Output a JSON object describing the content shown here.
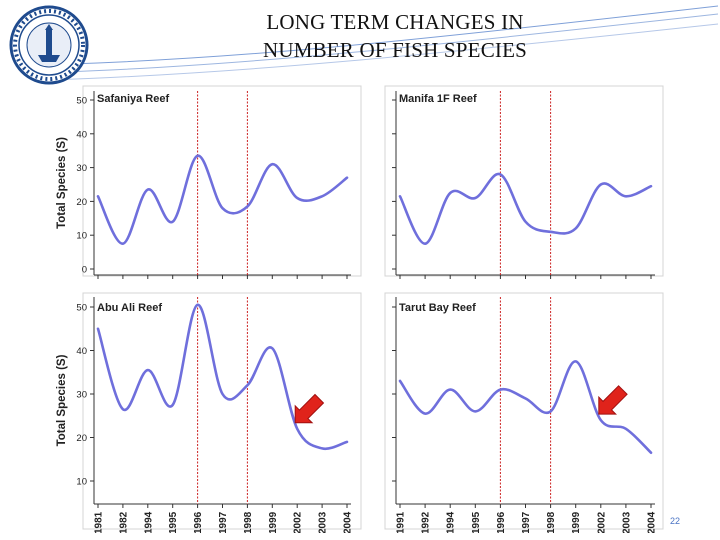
{
  "slide": {
    "title_line1": "LONG TERM CHANGES IN",
    "title_line2": "NUMBER OF FISH SPECIES",
    "number": "22"
  },
  "colors": {
    "curve": "#6f6fdc",
    "marker": "#cc2222",
    "arrow": "#e0231b",
    "axis": "#333333",
    "panel_border": "#d4d4d4",
    "deco_line": "#7fa0d8"
  },
  "icons": {
    "logo": "university-seal-icon",
    "arrow": "red-arrow-icon"
  },
  "chart_data": [
    {
      "type": "line",
      "title": "Safaniya Reef",
      "ylabel": "Total Species (S)",
      "ylim": [
        0,
        50
      ],
      "yticks": [
        "0",
        "10",
        "20",
        "30",
        "40",
        "50"
      ],
      "categories": [
        "1981",
        "1982",
        "1994",
        "1995",
        "1996",
        "1997",
        "1998",
        "1999",
        "2002",
        "2003",
        "2004"
      ],
      "values": [
        21.5,
        7.5,
        23.5,
        14,
        33.5,
        18,
        18.5,
        31,
        21,
        21.5,
        27
      ],
      "markers": [
        "1996",
        "1998"
      ]
    },
    {
      "type": "line",
      "title": "Manifa 1F Reef",
      "ylim": [
        0,
        50
      ],
      "categories": [
        "1991",
        "1992",
        "1994",
        "1995",
        "1996",
        "1997",
        "1998",
        "1999",
        "2002",
        "2003",
        "2004"
      ],
      "values": [
        21.5,
        7.5,
        22.5,
        21,
        28,
        14,
        11,
        12,
        25,
        21.5,
        24.5
      ],
      "markers": [
        "1996",
        "1998"
      ]
    },
    {
      "type": "line",
      "title": "Abu Ali Reef",
      "ylabel": "Total Species (S)",
      "ylim": [
        10,
        50
      ],
      "yticks": [
        "10",
        "20",
        "30",
        "40",
        "50"
      ],
      "categories": [
        "1981",
        "1982",
        "1994",
        "1995",
        "1996",
        "1997",
        "1998",
        "1999",
        "2002",
        "2003",
        "2004"
      ],
      "values": [
        45,
        26.5,
        35.5,
        27.5,
        50.5,
        30,
        32,
        40.5,
        22,
        17.5,
        19
      ],
      "markers": [
        "1996",
        "1998"
      ],
      "arrow_at": "2002"
    },
    {
      "type": "line",
      "title": "Tarut Bay Reef",
      "ylim": [
        10,
        50
      ],
      "categories": [
        "1991",
        "1992",
        "1994",
        "1995",
        "1996",
        "1997",
        "1998",
        "1999",
        "2002",
        "2003",
        "2004"
      ],
      "values": [
        33,
        25.5,
        31,
        26,
        31,
        29,
        26,
        37.5,
        24,
        22,
        16.5
      ],
      "markers": [
        "1996",
        "1998"
      ],
      "arrow_at": "2002"
    }
  ]
}
